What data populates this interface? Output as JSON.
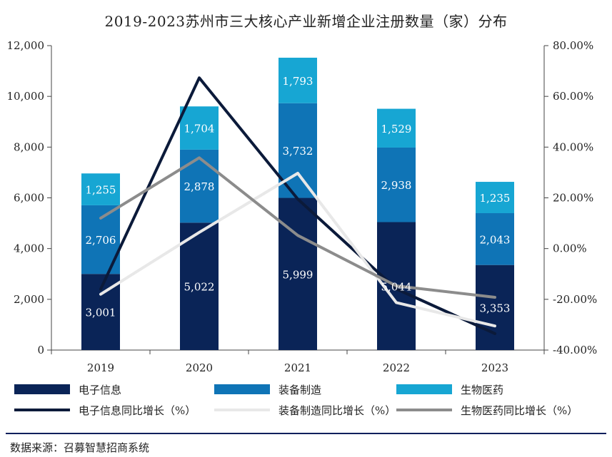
{
  "chart_data": {
    "type": "bar",
    "stacked": true,
    "title": "2019-2023苏州市三大核心产业新增企业注册数量（家）分布",
    "categories": [
      "2019",
      "2020",
      "2021",
      "2022",
      "2023"
    ],
    "series": [
      {
        "name": "电子信息",
        "color": "#0a2457",
        "label_color": "#ffffff",
        "values": [
          3001,
          5022,
          5999,
          5044,
          3353
        ]
      },
      {
        "name": "装备制造",
        "color": "#0f74b6",
        "label_color": "#ffffff",
        "values": [
          2706,
          2878,
          3732,
          2938,
          2043
        ]
      },
      {
        "name": "生物医药",
        "color": "#17a6d3",
        "label_color": "#ffffff",
        "values": [
          1255,
          1704,
          1793,
          1529,
          1235
        ]
      }
    ],
    "value_labels": [
      [
        "3,001",
        "5,022",
        "5,999",
        "5,044",
        "3,353"
      ],
      [
        "2,706",
        "2,878",
        "3,732",
        "2,938",
        "2,043"
      ],
      [
        "1,255",
        "1,704",
        "1,793",
        "1,529",
        "1,235"
      ]
    ],
    "line_series": [
      {
        "name": "电子信息同比增长（%）",
        "color": "#0b1a3a",
        "values": [
          -16,
          67.3,
          19.5,
          -15.9,
          -33.5
        ]
      },
      {
        "name": "装备制造同比增长（%）",
        "color": "#e8e8e8",
        "values": [
          -18,
          6.4,
          29.7,
          -21.3,
          -30.5
        ]
      },
      {
        "name": "生物医药同比增长（%）",
        "color": "#8c8c8c",
        "values": [
          12,
          35.8,
          5.2,
          -14.7,
          -19.2
        ]
      }
    ],
    "y_left": {
      "min": 0,
      "max": 12000,
      "ticks": [
        0,
        2000,
        4000,
        6000,
        8000,
        10000,
        12000
      ],
      "tick_labels": [
        "0",
        "2,000",
        "4,000",
        "6,000",
        "8,000",
        "10,000",
        "12,000"
      ]
    },
    "y_right": {
      "min": -40,
      "max": 80,
      "ticks": [
        -40,
        -20,
        0,
        20,
        40,
        60,
        80
      ],
      "tick_labels": [
        "-40.00%",
        "-20.00%",
        "0.00%",
        "20.00%",
        "40.00%",
        "60.00%",
        "80.00%"
      ]
    },
    "legend_position": "bottom"
  },
  "source": "数据来源：召募智慧招商系统"
}
